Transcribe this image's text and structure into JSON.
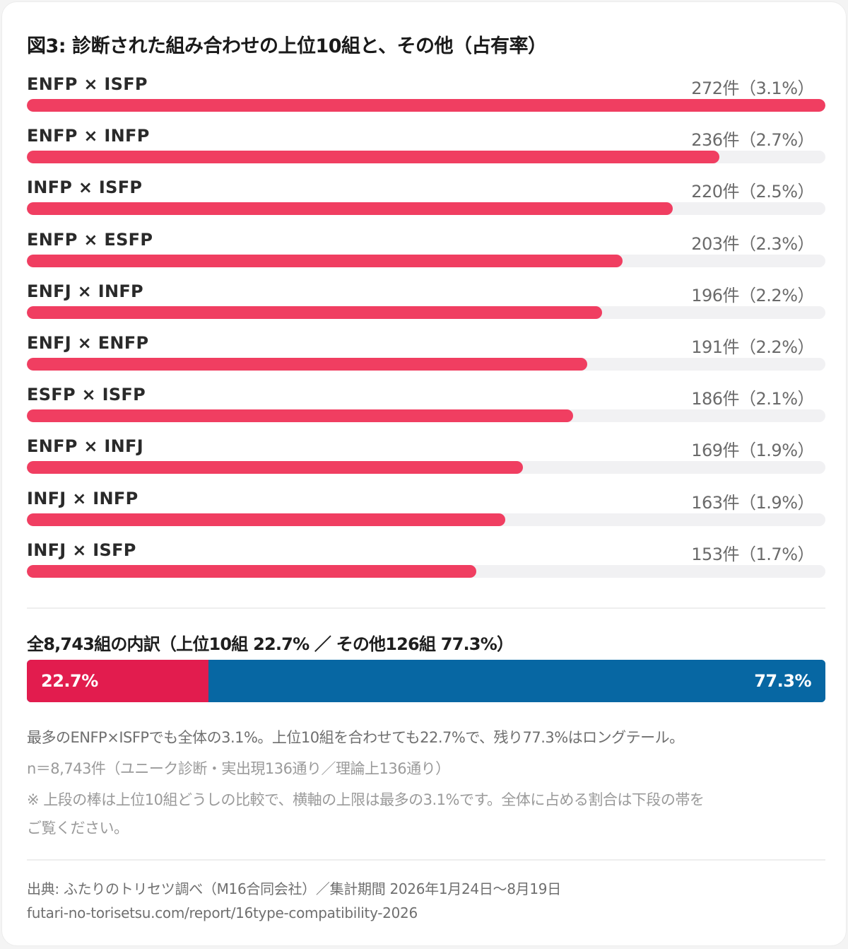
{
  "title": "図3: 診断された組み合わせの上位10組と、その他（占有率）",
  "colors": {
    "bar": "#f03e61",
    "track": "#f1f1f3",
    "top10": "#e21c4e",
    "others": "#0767a3"
  },
  "chart_data": {
    "type": "bar",
    "orientation": "horizontal",
    "categories": [
      "ENFP × ISFP",
      "ENFP × INFP",
      "INFP × ISFP",
      "ENFP × ESFP",
      "ENFJ × INFP",
      "ENFJ × ENFP",
      "ESFP × ISFP",
      "ENFP × INFJ",
      "INFJ × INFP",
      "INFJ × ISFP"
    ],
    "values": [
      272,
      236,
      220,
      203,
      196,
      191,
      186,
      169,
      163,
      153
    ],
    "value_labels": [
      "272件（3.1%）",
      "236件（2.7%）",
      "220件（2.5%）",
      "203件（2.3%）",
      "196件（2.2%）",
      "191件（2.2%）",
      "186件（2.1%）",
      "169件（1.9%）",
      "163件（1.9%）",
      "153件（1.7%）"
    ],
    "xlim": [
      0,
      272
    ],
    "grid": false
  },
  "breakdown": {
    "title": "全8,743組の内訳（上位10組 22.7% ／ その他126組 77.3%）",
    "top10_share": 22.7,
    "others_share": 77.3,
    "top10_label": "22.7%",
    "others_label": "77.3%"
  },
  "notes": {
    "line1": "最多のENFP×ISFPでも全体の3.1%。上位10組を合わせても22.7%で、残り77.3%はロングテール。",
    "line2": "n＝8,743件（ユニーク診断・実出現136通り／理論上136通り）",
    "line3": "※ 上段の棒は上位10組どうしの比較で、横軸の上限は最多の3.1%です。全体に占める割合は下段の帯を",
    "line4": "ご覧ください。"
  },
  "footer": {
    "source": "出典: ふたりのトリセツ調べ（M16合同会社）／集計期間 2026年1月24日〜8月19日",
    "url": "futari-no-torisetsu.com/report/16type-compatibility-2026"
  }
}
